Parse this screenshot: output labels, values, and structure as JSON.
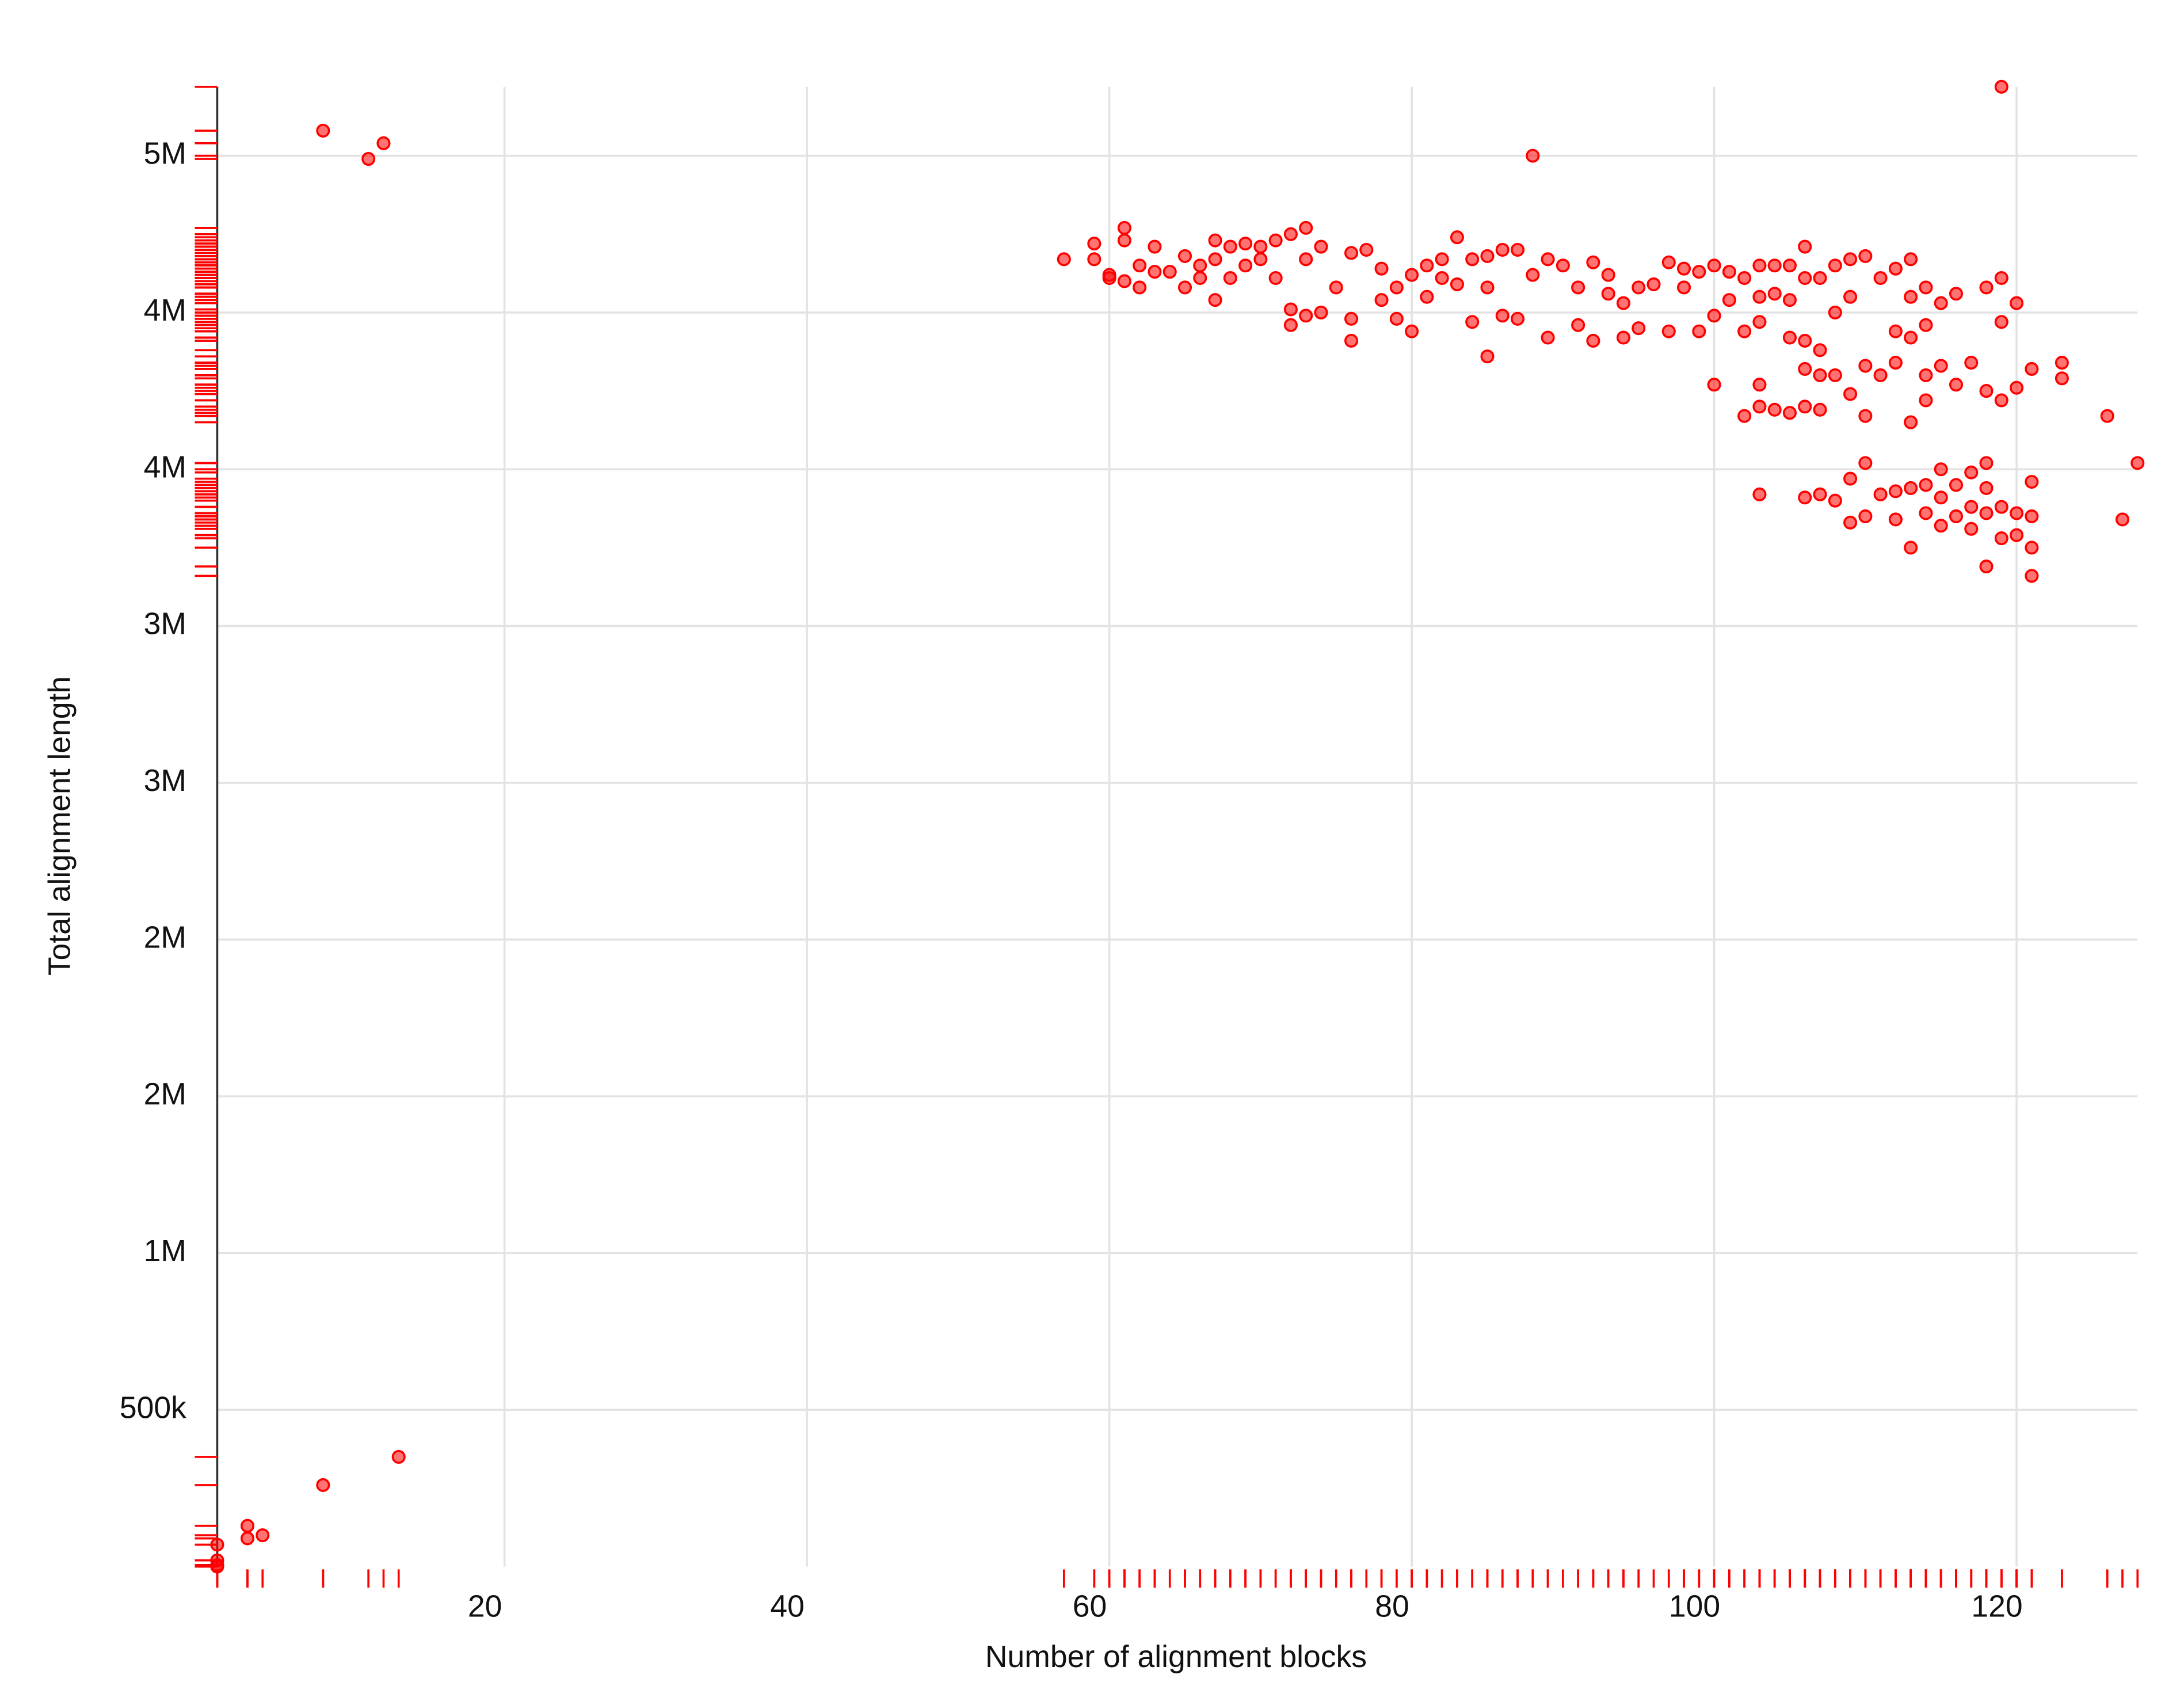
{
  "chart_data": {
    "type": "scatter",
    "x_label": "Number of alignment blocks",
    "y_label": "Total alignment length",
    "color": "#ff0000",
    "grid": true,
    "rug": true,
    "xlim": [
      1,
      128
    ],
    "ylim": [
      0,
      4720000
    ],
    "xticks": [
      20,
      40,
      60,
      80,
      100,
      120
    ],
    "yticks": [
      {
        "value": 500000,
        "label": "500k"
      },
      {
        "value": 1000000,
        "label": "1M"
      },
      {
        "value": 1500000,
        "label": "2M"
      },
      {
        "value": 2000000,
        "label": "2M"
      },
      {
        "value": 2500000,
        "label": "3M"
      },
      {
        "value": 3000000,
        "label": "3M"
      },
      {
        "value": 3500000,
        "label": "4M"
      },
      {
        "value": 4000000,
        "label": "4M"
      },
      {
        "value": 4500000,
        "label": "5M"
      }
    ],
    "x": [
      8,
      11,
      12,
      88,
      119,
      8,
      13,
      3,
      3,
      4,
      1,
      1,
      1,
      1,
      57,
      59,
      59,
      60,
      60,
      61,
      61,
      61,
      62,
      62,
      63,
      63,
      64,
      65,
      65,
      66,
      66,
      67,
      67,
      67,
      68,
      68,
      69,
      69,
      70,
      70,
      71,
      71,
      72,
      72,
      72,
      73,
      73,
      73,
      74,
      74,
      75,
      76,
      76,
      76,
      77,
      78,
      78,
      79,
      79,
      80,
      80,
      81,
      81,
      82,
      82,
      83,
      83,
      84,
      84,
      85,
      85,
      85,
      86,
      86,
      87,
      87,
      88,
      89,
      89,
      90,
      91,
      91,
      92,
      92,
      93,
      93,
      94,
      94,
      95,
      95,
      96,
      97,
      97,
      98,
      98,
      99,
      99,
      100,
      100,
      100,
      101,
      101,
      102,
      102,
      102,
      103,
      103,
      103,
      103,
      103,
      104,
      104,
      104,
      105,
      105,
      105,
      105,
      106,
      106,
      106,
      106,
      106,
      107,
      107,
      107,
      107,
      108,
      108,
      108,
      109,
      109,
      109,
      110,
      110,
      110,
      111,
      111,
      112,
      112,
      112,
      113,
      113,
      113,
      113,
      114,
      114,
      114,
      114,
      115,
      115,
      116,
      116,
      117,
      118,
      118,
      119,
      119,
      119,
      120,
      120,
      121,
      123,
      123,
      126,
      103,
      106,
      107,
      108,
      109,
      109,
      110,
      110,
      111,
      112,
      112,
      113,
      113,
      114,
      114,
      115,
      115,
      115,
      116,
      116,
      117,
      117,
      117,
      118,
      118,
      118,
      118,
      119,
      119,
      120,
      120,
      121,
      121,
      121,
      121,
      127,
      128
    ],
    "values": [
      4580000,
      4490000,
      4540000,
      4500000,
      4720000,
      260000,
      350000,
      130000,
      90000,
      100000,
      70000,
      20000,
      5000,
      0,
      4170000,
      4220000,
      4170000,
      4110000,
      4120000,
      4270000,
      4230000,
      4100000,
      4150000,
      4080000,
      4210000,
      4130000,
      4130000,
      4180000,
      4080000,
      4150000,
      4110000,
      4230000,
      4170000,
      4040000,
      4210000,
      4110000,
      4220000,
      4150000,
      4210000,
      4170000,
      4230000,
      4110000,
      4250000,
      4010000,
      3960000,
      4270000,
      4170000,
      3990000,
      4210000,
      4000000,
      4080000,
      4190000,
      3980000,
      3910000,
      4200000,
      4140000,
      4040000,
      4080000,
      3980000,
      4120000,
      3940000,
      4050000,
      4150000,
      4170000,
      4110000,
      4240000,
      4090000,
      4170000,
      3970000,
      4180000,
      4080000,
      3860000,
      4200000,
      3990000,
      4200000,
      3980000,
      4120000,
      4170000,
      3920000,
      4150000,
      4080000,
      3960000,
      4160000,
      3910000,
      4120000,
      4060000,
      4030000,
      3920000,
      4080000,
      3950000,
      4090000,
      4160000,
      3940000,
      4140000,
      4080000,
      4130000,
      3940000,
      4150000,
      3990000,
      3770000,
      4130000,
      4040000,
      4110000,
      3940000,
      3670000,
      4150000,
      4050000,
      3970000,
      3770000,
      3700000,
      4150000,
      4060000,
      3690000,
      4150000,
      4040000,
      3920000,
      3680000,
      4210000,
      4110000,
      3910000,
      3820000,
      3700000,
      4110000,
      3880000,
      3800000,
      3690000,
      4150000,
      4000000,
      3800000,
      4170000,
      4050000,
      3740000,
      4180000,
      3830000,
      3670000,
      4110000,
      3800000,
      4140000,
      3940000,
      3840000,
      4170000,
      4050000,
      3920000,
      3650000,
      4080000,
      3960000,
      3800000,
      3720000,
      4030000,
      3830000,
      4060000,
      3770000,
      3840000,
      4080000,
      3750000,
      4110000,
      3970000,
      3720000,
      4030000,
      3760000,
      3820000,
      3840000,
      3790000,
      3670000,
      3420000,
      3410000,
      3420000,
      3400000,
      3470000,
      3330000,
      3520000,
      3350000,
      3420000,
      3430000,
      3340000,
      3440000,
      3250000,
      3450000,
      3360000,
      3500000,
      3410000,
      3320000,
      3450000,
      3350000,
      3490000,
      3380000,
      3310000,
      3520000,
      3440000,
      3360000,
      3190000,
      3380000,
      3280000,
      3360000,
      3290000,
      3460000,
      3350000,
      3250000,
      3160000,
      3340000,
      3520000
    ]
  }
}
